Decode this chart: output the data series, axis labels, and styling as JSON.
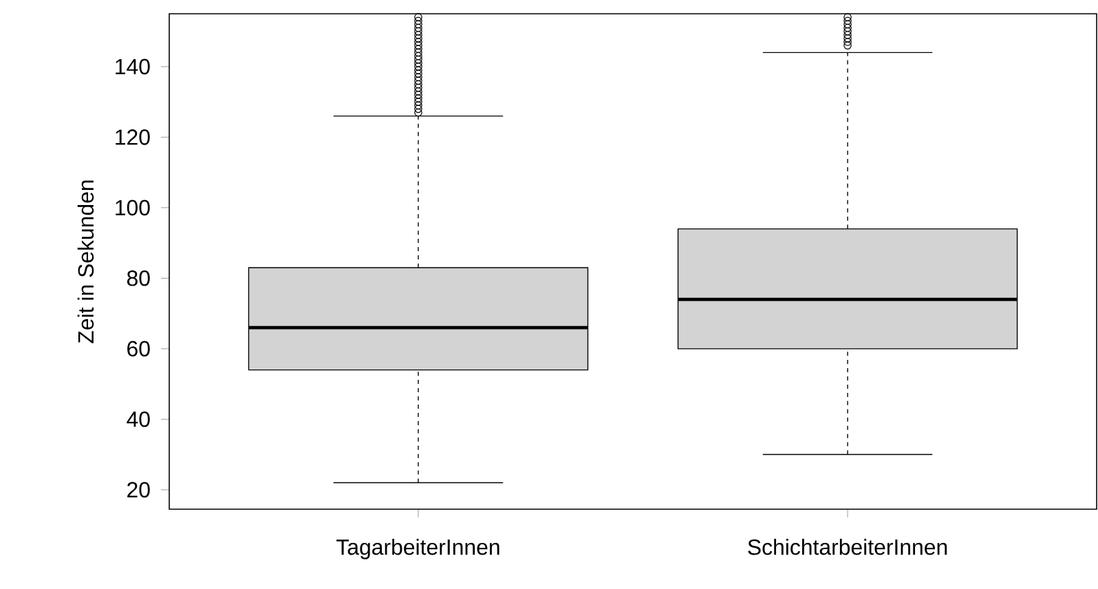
{
  "chart_data": {
    "type": "box",
    "ylabel": "Zeit in Sekunden",
    "categories": [
      "TagarbeiterInnen",
      "SchichtarbeiterInnen"
    ],
    "boxes": [
      {
        "low": 22,
        "q1": 54,
        "median": 66,
        "q3": 83,
        "high": 126,
        "outliers": [
          127,
          128,
          129,
          130,
          131,
          132,
          133,
          134,
          135,
          136,
          137,
          138,
          139,
          140,
          141,
          142,
          143,
          144,
          145,
          146,
          147,
          148,
          149,
          150,
          151,
          152,
          153,
          154
        ]
      },
      {
        "low": 30,
        "q1": 60,
        "median": 74,
        "q3": 94,
        "high": 144,
        "outliers": [
          146,
          147,
          148,
          149,
          150,
          151,
          152,
          153,
          154
        ]
      }
    ],
    "color": "#d3d3d3",
    "ylim": [
      14.5,
      155
    ],
    "yticks": [
      20,
      40,
      60,
      80,
      100,
      120,
      140
    ],
    "marker": "circle"
  }
}
